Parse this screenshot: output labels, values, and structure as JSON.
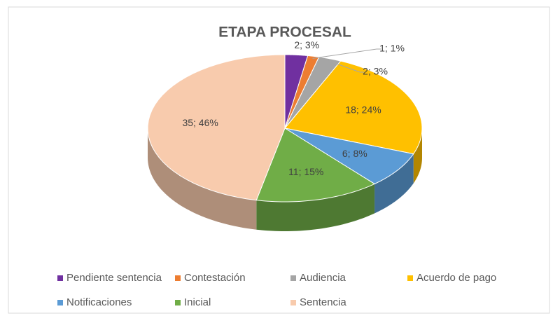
{
  "chart_data": {
    "type": "pie3d",
    "title": "ETAPA PROCESAL",
    "categories": [
      "Pendiente sentencia",
      "Contestación",
      "Audiencia",
      "Acuerdo de pago",
      "Notificaciones",
      "Inicial",
      "Sentencia"
    ],
    "values": [
      2,
      1,
      2,
      18,
      6,
      11,
      35
    ],
    "value_labels": [
      "2; 3%",
      "1; 1%",
      "2; 3%",
      "18; 24%",
      "6; 8%",
      "11; 15%",
      "35; 46%"
    ],
    "colors": [
      "#7030a0",
      "#ed7d31",
      "#a5a5a5",
      "#ffc000",
      "#5b9bd5",
      "#70ad47",
      "#f8cbad"
    ],
    "legend": "bottom"
  }
}
